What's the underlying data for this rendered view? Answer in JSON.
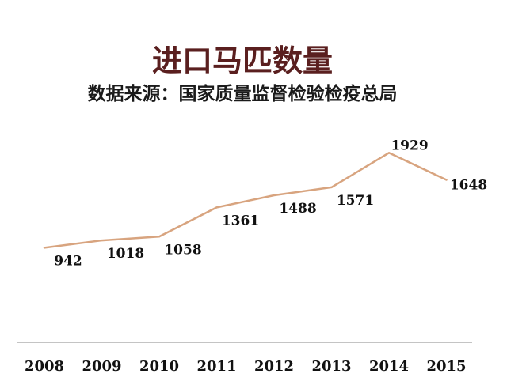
{
  "chart_data": {
    "type": "line",
    "title": "进口马匹数量",
    "subtitle": "数据来源：国家质量监督检验检疫总局",
    "categories": [
      "2008",
      "2009",
      "2010",
      "2011",
      "2012",
      "2013",
      "2014",
      "2015"
    ],
    "series": [
      {
        "values": [
          942,
          1018,
          1058,
          1361,
          1488,
          1571,
          1929,
          1648
        ]
      }
    ],
    "ylim": [
      0,
      2400
    ],
    "grid": false,
    "legend": "none",
    "line_color": "#d8a47f",
    "axis_color": "#888888"
  }
}
